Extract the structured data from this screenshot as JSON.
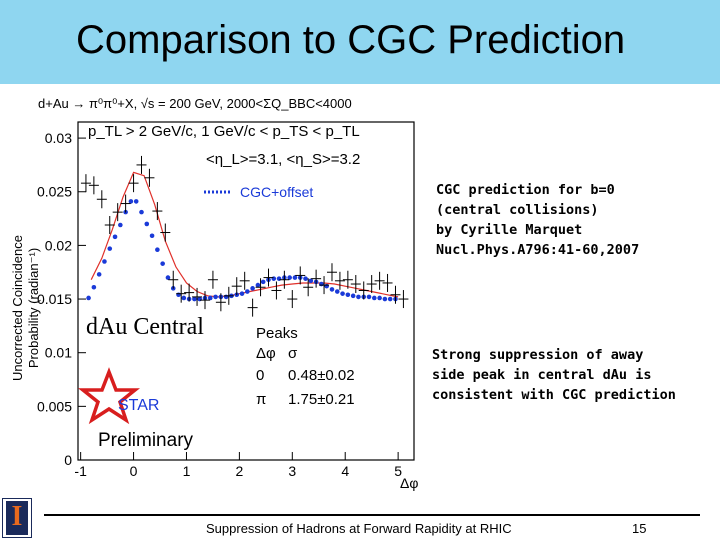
{
  "slide": {
    "title": "Comparison to CGC Prediction",
    "footer": "Suppression of Hadrons at Forward Rapidity at RHIC",
    "page_number": "15",
    "colors": {
      "title_bar": "#8fd6f0",
      "model_line": "#e0302a",
      "cgc_points": "#1a3ad8",
      "star_logo": "#d81e1e",
      "star_text": "#1a3ad8"
    }
  },
  "notes": {
    "cgc_reference": "CGC prediction for b=0\n(central collisions)\nby Cyrille Marquet\nNucl.Phys.A796:41-60,2007",
    "conclusion": "Strong suppression of away\nside peak in central dAu is\nconsistent with CGC prediction"
  },
  "chart_data": {
    "type": "scatter",
    "header": "d+Au → π⁰π⁰+X, √s = 200 GeV, 2000<ΣQ_BBC<4000",
    "cuts_line1": "p_TL > 2 GeV/c,  1 GeV/c < p_TS < p_TL",
    "cuts_line2": "<η_L>=3.1, <η_S>=3.2",
    "ylabel_line1": "Uncorrected Coincidence",
    "ylabel_line2": "Probability (radian⁻¹)",
    "xlabel": "Δφ",
    "xlim": [
      -1.05,
      5.3
    ],
    "ylim": [
      0,
      0.0315
    ],
    "x_ticks": [
      "-1",
      "0",
      "1",
      "2",
      "3",
      "4",
      "5"
    ],
    "x_tick_values": [
      -1,
      0,
      1,
      2,
      3,
      4,
      5
    ],
    "y_ticks": [
      "0",
      "0.005",
      "0.01",
      "0.015",
      "0.02",
      "0.025",
      "0.03"
    ],
    "y_tick_values": [
      0,
      0.005,
      0.01,
      0.015,
      0.02,
      0.025,
      0.03
    ],
    "centrality_label": "dAu Central",
    "legend_label": "CGC+offset",
    "peaks_title": "Peaks",
    "peaks_header": [
      "Δφ",
      "σ"
    ],
    "peaks_rows": [
      [
        "0",
        "0.48±0.02"
      ],
      [
        "π",
        "1.75±0.21"
      ]
    ],
    "logo_text": "STAR",
    "status_text": "Preliminary",
    "series": [
      {
        "name": "data",
        "style": "cross",
        "x": [
          -0.9,
          -0.75,
          -0.6,
          -0.45,
          -0.3,
          -0.15,
          0.0,
          0.15,
          0.3,
          0.45,
          0.6,
          0.75,
          0.9,
          1.05,
          1.2,
          1.35,
          1.5,
          1.65,
          1.8,
          1.95,
          2.1,
          2.25,
          2.4,
          2.55,
          2.7,
          2.85,
          3.0,
          3.15,
          3.3,
          3.45,
          3.6,
          3.75,
          3.9,
          4.05,
          4.2,
          4.35,
          4.5,
          4.65,
          4.8,
          4.95,
          5.1
        ],
        "y": [
          0.0258,
          0.0256,
          0.0243,
          0.0219,
          0.0231,
          0.0239,
          0.0258,
          0.0275,
          0.0263,
          0.0232,
          0.0212,
          0.0168,
          0.0155,
          0.0156,
          0.0152,
          0.0149,
          0.0168,
          0.0147,
          0.0153,
          0.0162,
          0.0167,
          0.0142,
          0.0161,
          0.017,
          0.0158,
          0.0168,
          0.015,
          0.0172,
          0.0161,
          0.0169,
          0.0163,
          0.0175,
          0.0167,
          0.0168,
          0.0164,
          0.0158,
          0.0164,
          0.0167,
          0.0165,
          0.0154,
          0.015
        ]
      },
      {
        "name": "CGC+offset",
        "style": "dots",
        "x": [
          -0.85,
          -0.75,
          -0.65,
          -0.55,
          -0.45,
          -0.35,
          -0.25,
          -0.15,
          -0.05,
          0.05,
          0.15,
          0.25,
          0.35,
          0.45,
          0.55,
          0.65,
          0.75,
          0.85,
          0.95,
          1.05,
          1.15,
          1.25,
          1.35,
          1.45,
          1.55,
          1.65,
          1.75,
          1.85,
          1.95,
          2.05,
          2.15,
          2.25,
          2.35,
          2.45,
          2.55,
          2.65,
          2.75,
          2.85,
          2.95,
          3.05,
          3.15,
          3.25,
          3.35,
          3.45,
          3.55,
          3.65,
          3.75,
          3.85,
          3.95,
          4.05,
          4.15,
          4.25,
          4.35,
          4.45,
          4.55,
          4.65,
          4.75,
          4.85,
          4.95
        ],
        "y": [
          0.0151,
          0.0161,
          0.0173,
          0.0185,
          0.0197,
          0.0208,
          0.0219,
          0.0231,
          0.0241,
          0.0241,
          0.0231,
          0.022,
          0.0209,
          0.0196,
          0.0183,
          0.017,
          0.016,
          0.0154,
          0.0151,
          0.015,
          0.015,
          0.015,
          0.0151,
          0.0151,
          0.0152,
          0.0152,
          0.0152,
          0.0153,
          0.0154,
          0.0155,
          0.0157,
          0.016,
          0.0163,
          0.0166,
          0.0168,
          0.0169,
          0.0169,
          0.017,
          0.017,
          0.017,
          0.017,
          0.0169,
          0.0167,
          0.0166,
          0.0164,
          0.0162,
          0.0159,
          0.0157,
          0.0155,
          0.0154,
          0.0153,
          0.0152,
          0.0152,
          0.0152,
          0.0151,
          0.0151,
          0.015,
          0.015,
          0.015
        ]
      },
      {
        "name": "fit",
        "style": "line",
        "x": [
          -0.8,
          -0.6,
          -0.4,
          -0.2,
          0.0,
          0.2,
          0.4,
          0.6,
          0.8,
          1.0,
          1.2,
          1.4,
          1.6,
          1.8,
          2.0,
          2.2,
          2.4,
          2.6,
          2.8,
          3.0,
          3.2,
          3.4,
          3.6,
          3.8,
          4.0,
          4.2,
          4.4,
          4.6,
          4.8,
          5.0
        ],
        "y": [
          0.0168,
          0.0188,
          0.0215,
          0.0245,
          0.0268,
          0.0265,
          0.0238,
          0.0204,
          0.018,
          0.0165,
          0.0157,
          0.0153,
          0.0152,
          0.0153,
          0.0155,
          0.0157,
          0.0159,
          0.0161,
          0.0163,
          0.0164,
          0.0165,
          0.0165,
          0.0165,
          0.0164,
          0.0162,
          0.016,
          0.0158,
          0.0156,
          0.0154,
          0.0152
        ]
      }
    ]
  }
}
